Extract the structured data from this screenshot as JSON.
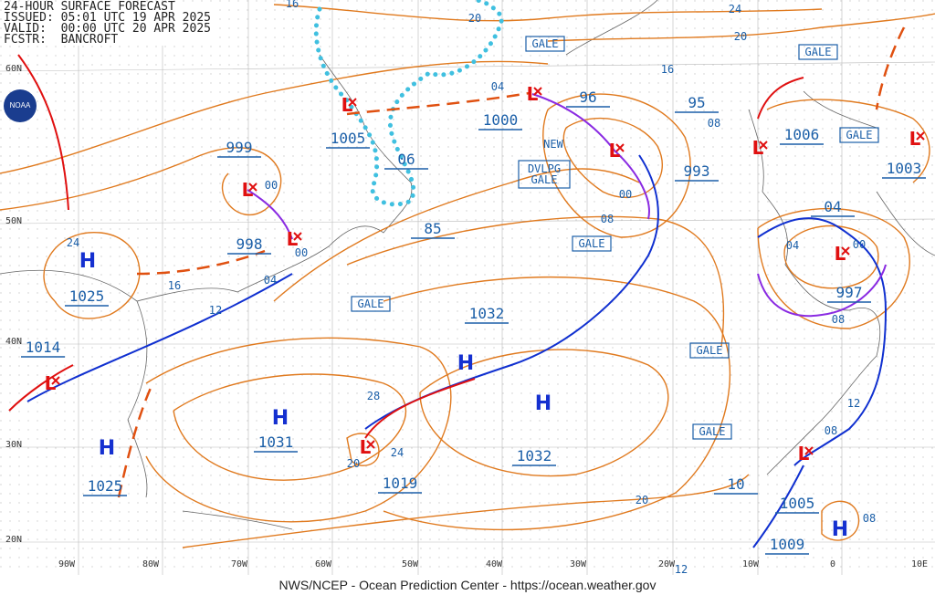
{
  "header": {
    "lines": [
      "24-HOUR SURFACE FORECAST",
      "ISSUED: 05:01 UTC 19 APR 2025",
      "VALID:  00:00 UTC 20 APR 2025",
      "FCSTR:  BANCROFT"
    ]
  },
  "logo": "NOAA",
  "footer": "NWS/NCEP - Ocean Prediction Center - https://ocean.weather.gov",
  "latitude_labels": [
    "60N",
    "50N",
    "40N",
    "30N",
    "20N"
  ],
  "longitude_labels": [
    "90W",
    "80W",
    "70W",
    "60W",
    "50W",
    "40W",
    "30W",
    "20W",
    "10W",
    "0",
    "10E"
  ],
  "high_symbols": [
    "H",
    "H",
    "H",
    "H",
    "H",
    "H"
  ],
  "low_symbols": [
    "L",
    "L",
    "L",
    "L",
    "L",
    "L",
    "L",
    "L",
    "L",
    "L",
    "L"
  ],
  "pressure_labels": [
    "1005",
    "1000",
    "999",
    "998",
    "1025",
    "1014",
    "1031",
    "1032",
    "1032",
    "1025",
    "1019",
    "993",
    "1006",
    "1003",
    "997",
    "1005",
    "1009",
    "96",
    "95",
    "06",
    "85",
    "04",
    "10"
  ],
  "warnings": [
    "GALE",
    "GALE",
    "GALE",
    "GALE",
    "GALE",
    "GALE",
    "GALE",
    "DVLPG",
    "GALE"
  ],
  "notes": [
    "NEW"
  ],
  "isobar_labels": [
    "16",
    "20",
    "24",
    "20",
    "16",
    "04",
    "08",
    "00",
    "00",
    "04",
    "12",
    "16",
    "24",
    "28",
    "24",
    "20",
    "08",
    "00",
    "04",
    "00",
    "08",
    "12",
    "08",
    "20",
    "08",
    "12"
  ]
}
